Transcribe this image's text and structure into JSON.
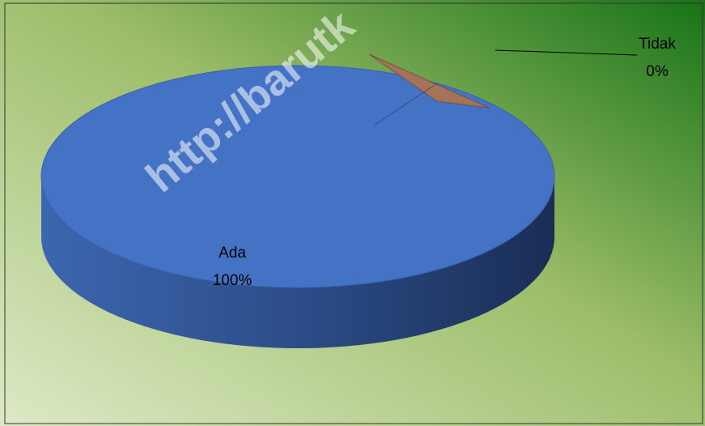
{
  "chart_data": {
    "type": "pie",
    "watermark": "http://barutk",
    "categories": [
      "Ada",
      "Tidak"
    ],
    "values": [
      100,
      0
    ],
    "value_labels": [
      "100%",
      "0%"
    ],
    "colors": [
      "#4472c4",
      "#a5735a"
    ]
  }
}
